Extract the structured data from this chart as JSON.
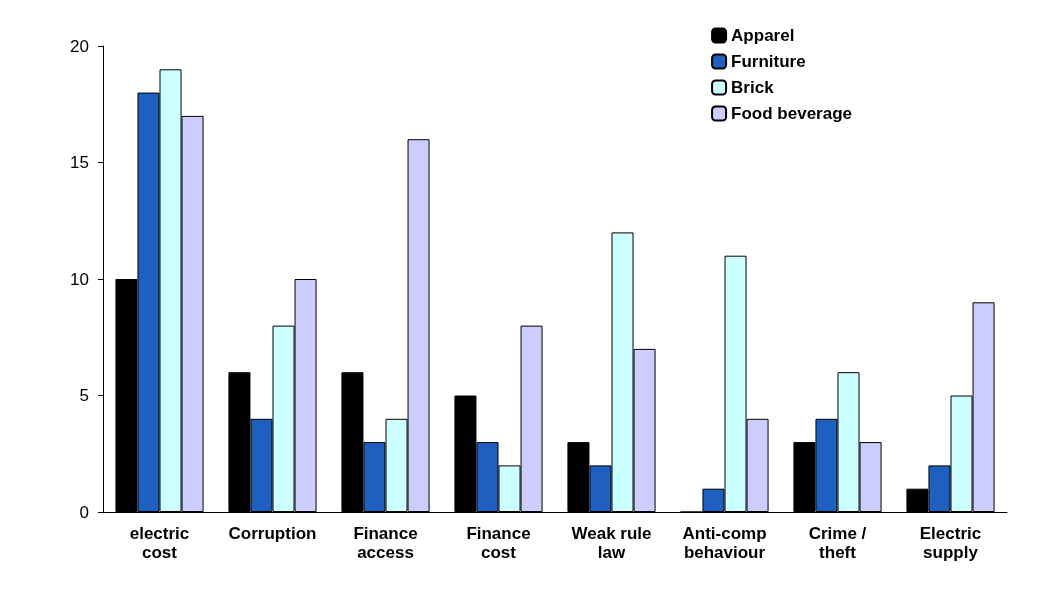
{
  "chart_data": {
    "type": "bar",
    "categories": [
      "electric\ncost",
      "Corruption",
      "Finance\naccess",
      "Finance\ncost",
      "Weak rule\nlaw",
      "Anti-comp\nbehaviour",
      "Crime /\ntheft",
      "Electric\nsupply"
    ],
    "series": [
      {
        "name": "Apparel",
        "color": "#000000",
        "values": [
          10,
          6,
          6,
          5,
          3,
          0,
          3,
          1
        ]
      },
      {
        "name": "Furniture",
        "color": "#1f5fbf",
        "values": [
          18,
          4,
          3,
          3,
          2,
          1,
          4,
          2
        ]
      },
      {
        "name": "Brick",
        "color": "#ccffff",
        "values": [
          19,
          8,
          4,
          2,
          12,
          11,
          6,
          5
        ]
      },
      {
        "name": "Food beverage",
        "color": "#ccccff",
        "values": [
          17,
          10,
          16,
          8,
          7,
          4,
          3,
          9
        ]
      }
    ],
    "ylim": [
      0,
      20
    ],
    "yticks": [
      0,
      5,
      10,
      15,
      20
    ],
    "grid": false,
    "legend": "top right"
  }
}
